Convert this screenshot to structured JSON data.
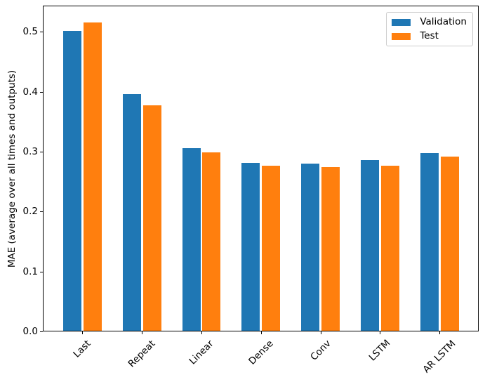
{
  "chart_data": {
    "type": "bar",
    "title": "",
    "categories": [
      "Last",
      "Repeat",
      "Linear",
      "Dense",
      "Conv",
      "LSTM",
      "AR LSTM"
    ],
    "series": [
      {
        "name": "Validation",
        "color": "#1f77b4",
        "values": [
          0.502,
          0.396,
          0.306,
          0.281,
          0.28,
          0.286,
          0.298
        ]
      },
      {
        "name": "Test",
        "color": "#ff7f0e",
        "values": [
          0.516,
          0.377,
          0.299,
          0.276,
          0.274,
          0.277,
          0.292
        ]
      }
    ],
    "xlabel": "",
    "ylabel": "MAE (average over all times and outputs)",
    "y_ticks": [
      0.0,
      0.1,
      0.2,
      0.3,
      0.4,
      0.5
    ],
    "ylim": [
      0,
      0.5437
    ],
    "x_tick_rotation": 45,
    "bar_width": 0.3,
    "bar_offset": 0.17,
    "legend": {
      "position": "upper right",
      "entries": [
        "Validation",
        "Test"
      ]
    },
    "grid": false,
    "background": "#ffffff",
    "spine_color": "#000000"
  }
}
